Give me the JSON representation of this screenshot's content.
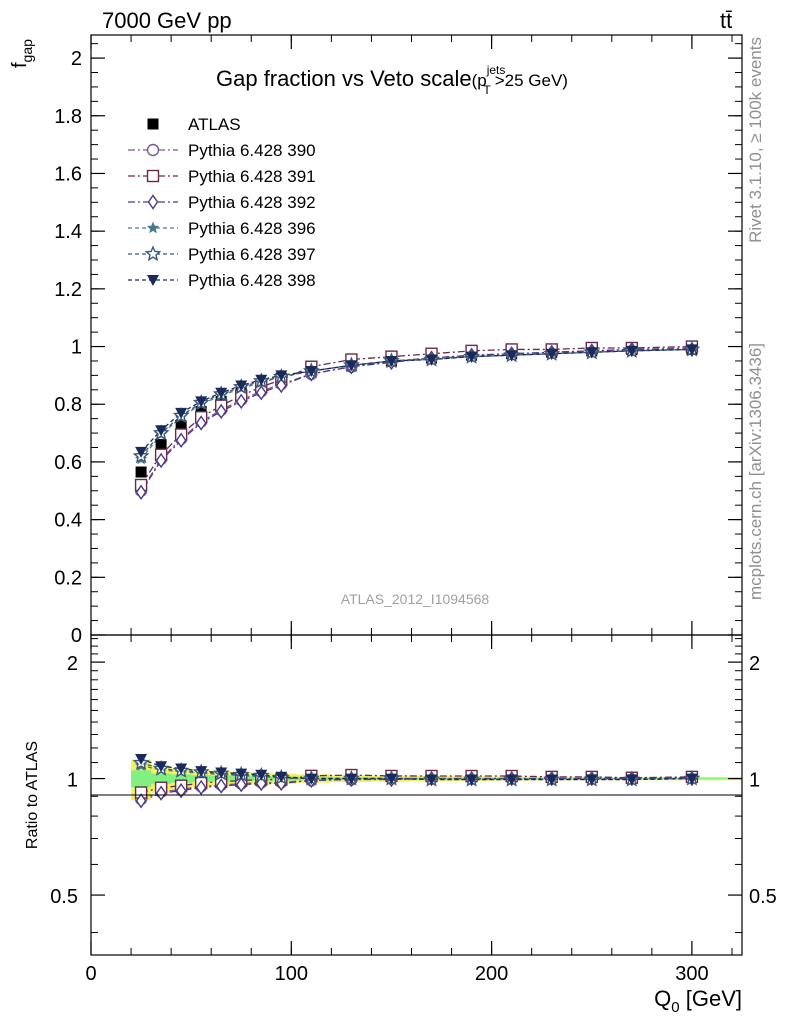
{
  "header": {
    "left": "7000 GeV pp",
    "right": "tt̄"
  },
  "side_labels": {
    "top": "Rivet 3.1.10, ≥ 100k events",
    "bottom": "mcplots.cern.ch [arXiv:1306.3436]"
  },
  "chart_data": {
    "type": "line",
    "title": "Gap fraction vs Veto scale",
    "title_suffix": {
      "open": "(p",
      "sub": "T",
      "sup": "jets",
      "rest": ">25 GeV)"
    },
    "watermark": "ATLAS_2012_I1094568",
    "xlabel": {
      "main": "Q",
      "sub": "0",
      "rest": " [GeV]"
    },
    "ylabel": {
      "main": "f",
      "sub": "gap"
    },
    "xlim": [
      0,
      325
    ],
    "ylim": [
      0,
      2.08
    ],
    "x_ticks": [
      "0",
      "100",
      "200",
      "300"
    ],
    "y_ticks": [
      "0",
      "0.2",
      "0.4",
      "0.6",
      "0.8",
      "1",
      "1.2",
      "1.4",
      "1.6",
      "1.8",
      "2"
    ],
    "x": [
      25,
      35,
      45,
      55,
      65,
      75,
      85,
      95,
      110,
      130,
      150,
      170,
      190,
      210,
      230,
      250,
      270,
      300
    ],
    "series": [
      {
        "name": "ATLAS",
        "color": "#000000",
        "marker": "square-filled",
        "dash": "none",
        "values": [
          0.565,
          0.66,
          0.725,
          0.775,
          0.81,
          0.84,
          0.865,
          0.89,
          0.915,
          0.935,
          0.95,
          0.96,
          0.97,
          0.975,
          0.98,
          0.985,
          0.99,
          0.99
        ]
      },
      {
        "name": "Pythia 6.428 390",
        "color": "#7a5a8a",
        "marker": "circle-open",
        "dash": "7,3,2,3",
        "values": [
          0.5,
          0.61,
          0.68,
          0.74,
          0.78,
          0.815,
          0.845,
          0.87,
          0.905,
          0.93,
          0.95,
          0.96,
          0.97,
          0.975,
          0.98,
          0.985,
          0.99,
          0.995
        ]
      },
      {
        "name": "Pythia 6.428 391",
        "color": "#6a2a4a",
        "marker": "square-open",
        "dash": "7,3,2,3",
        "values": [
          0.52,
          0.625,
          0.695,
          0.755,
          0.795,
          0.83,
          0.86,
          0.885,
          0.93,
          0.955,
          0.965,
          0.975,
          0.985,
          0.99,
          0.99,
          0.995,
          0.995,
          1.0
        ]
      },
      {
        "name": "Pythia 6.428 392",
        "color": "#4a3a8a",
        "marker": "diamond-open",
        "dash": "7,3,2,3",
        "values": [
          0.495,
          0.605,
          0.675,
          0.735,
          0.775,
          0.81,
          0.84,
          0.865,
          0.905,
          0.93,
          0.945,
          0.96,
          0.97,
          0.975,
          0.98,
          0.985,
          0.99,
          0.99
        ]
      },
      {
        "name": "Pythia 6.428 396",
        "color": "#4a7a8a",
        "marker": "star-filled",
        "dash": "4,3",
        "values": [
          0.61,
          0.695,
          0.755,
          0.8,
          0.83,
          0.855,
          0.875,
          0.895,
          0.915,
          0.935,
          0.95,
          0.96,
          0.965,
          0.97,
          0.975,
          0.98,
          0.985,
          0.99
        ]
      },
      {
        "name": "Pythia 6.428 397",
        "color": "#3a5a7a",
        "marker": "star-open",
        "dash": "4,3",
        "values": [
          0.62,
          0.7,
          0.76,
          0.805,
          0.835,
          0.86,
          0.88,
          0.895,
          0.915,
          0.935,
          0.95,
          0.955,
          0.965,
          0.97,
          0.975,
          0.98,
          0.985,
          0.99
        ]
      },
      {
        "name": "Pythia 6.428 398",
        "color": "#1a2a5a",
        "marker": "triangle-down-filled",
        "dash": "4,3",
        "values": [
          0.635,
          0.71,
          0.77,
          0.81,
          0.84,
          0.865,
          0.885,
          0.9,
          0.915,
          0.935,
          0.95,
          0.955,
          0.965,
          0.97,
          0.975,
          0.98,
          0.985,
          0.99
        ]
      }
    ],
    "ratio": {
      "ylabel": "Ratio to ATLAS",
      "ylim": [
        0.35,
        2.35
      ],
      "scale": "log",
      "y_ticks": [
        "0.5",
        "1",
        "2"
      ],
      "band_inner": {
        "color": "#80f080",
        "half_width": [
          0.05,
          0.03,
          0.025,
          0.02,
          0.018,
          0.015,
          0.013,
          0.012,
          0.01,
          0.008,
          0.007,
          0.006,
          0.005,
          0.005,
          0.004,
          0.004,
          0.004,
          0.004
        ]
      },
      "band_outer": {
        "color": "#f0f060",
        "half_width": [
          0.12,
          0.08,
          0.06,
          0.05,
          0.045,
          0.04,
          0.035,
          0.03,
          0.025,
          0.02,
          0.018,
          0.016,
          0.014,
          0.012,
          0.011,
          0.01,
          0.01,
          0.01
        ]
      }
    }
  }
}
